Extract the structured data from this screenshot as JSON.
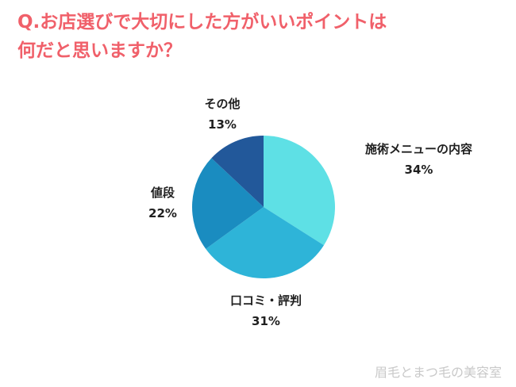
{
  "title_lines": [
    "Q.お店選びで大切にした方がいいポイントは",
    "何だと思いますか？"
  ],
  "watermark": "眉毛とまつ毛の美容室",
  "chart_data": {
    "type": "pie",
    "title": "Q.お店選びで大切にした方がいいポイントは何だと思いますか？",
    "slices": [
      {
        "label": "施術メニューの内容",
        "value": 34,
        "display": "34%",
        "color": "#5ee0e5"
      },
      {
        "label": "口コミ・評判",
        "value": 31,
        "display": "31%",
        "color": "#2eb4d8"
      },
      {
        "label": "値段",
        "value": 22,
        "display": "22%",
        "color": "#1a8cc0"
      },
      {
        "label": "その他",
        "value": 13,
        "display": "13%",
        "color": "#22589a"
      }
    ],
    "legend": "none"
  }
}
